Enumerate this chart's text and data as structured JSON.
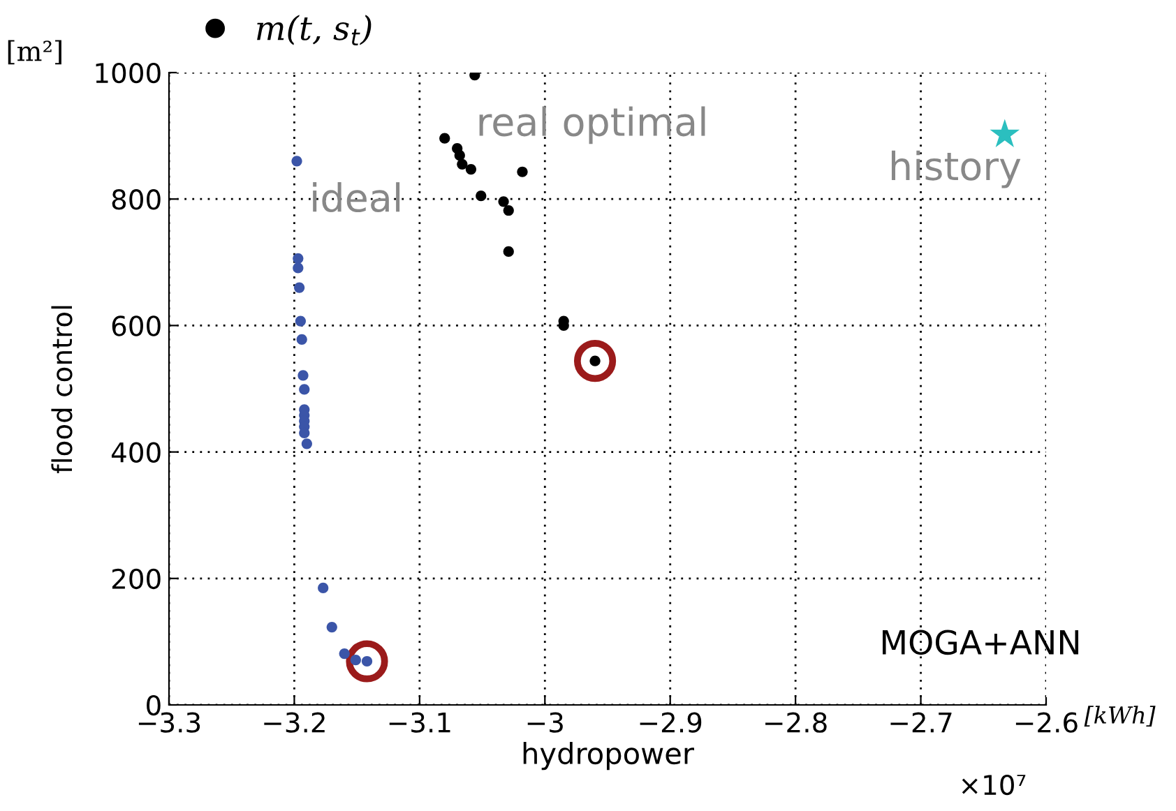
{
  "chart_data": {
    "type": "scatter",
    "xlabel": "hydropower",
    "ylabel": "flood control",
    "xlim": [
      -3.3,
      -2.6
    ],
    "ylim": [
      0,
      1000
    ],
    "xticks": [
      {
        "value": -3.3,
        "label": "−3.3"
      },
      {
        "value": -3.2,
        "label": "−3.2"
      },
      {
        "value": -3.1,
        "label": "−3.1"
      },
      {
        "value": -3,
        "label": "−3"
      },
      {
        "value": -2.9,
        "label": "−2.9"
      },
      {
        "value": -2.8,
        "label": "−2.8"
      },
      {
        "value": -2.7,
        "label": "−2.7"
      },
      {
        "value": -2.6,
        "label": "−2.6"
      }
    ],
    "yticks": [
      0,
      200,
      400,
      600,
      800,
      1000
    ],
    "grid": true,
    "legend": "top left",
    "series": [
      {
        "marker": "circle",
        "color": "#9b1b1b",
        "x": [
          -3.142,
          -2.96
        ],
        "values": [
          69,
          544
        ]
      },
      {
        "marker": "circle",
        "color": "#3b55a8",
        "x": [
          -3.198,
          -3.197,
          -3.197,
          -3.196,
          -3.195,
          -3.194,
          -3.193,
          -3.192,
          -3.192,
          -3.192,
          -3.192,
          -3.192,
          -3.192,
          -3.19,
          -3.177,
          -3.17,
          -3.16,
          -3.151,
          -3.142
        ],
        "values": [
          860,
          706,
          691,
          660,
          607,
          578,
          521,
          499,
          467,
          458,
          449,
          440,
          430,
          413,
          185,
          123,
          81,
          71,
          69
        ]
      },
      {
        "marker": "circle",
        "name": "m(t, s$_{t}$)",
        "color": "#000000",
        "x": [
          -3.056,
          -3.08,
          -3.07,
          -3.068,
          -3.066,
          -3.059,
          -3.051,
          -3.018,
          -3.033,
          -3.029,
          -3.029,
          -2.985,
          -2.985,
          -2.96
        ],
        "values": [
          996,
          896,
          880,
          869,
          855,
          847,
          805,
          843,
          796,
          782,
          717,
          607,
          600,
          544
        ]
      },
      {
        "marker": "star",
        "color": "#2bbfbf",
        "x": [
          -2.633
        ],
        "values": [
          902
        ]
      }
    ],
    "annotations": [
      "ideal",
      "real optimal",
      "history",
      "MOGA+ANN",
      "[m²]",
      "[kWh]",
      "×10⁷"
    ]
  }
}
